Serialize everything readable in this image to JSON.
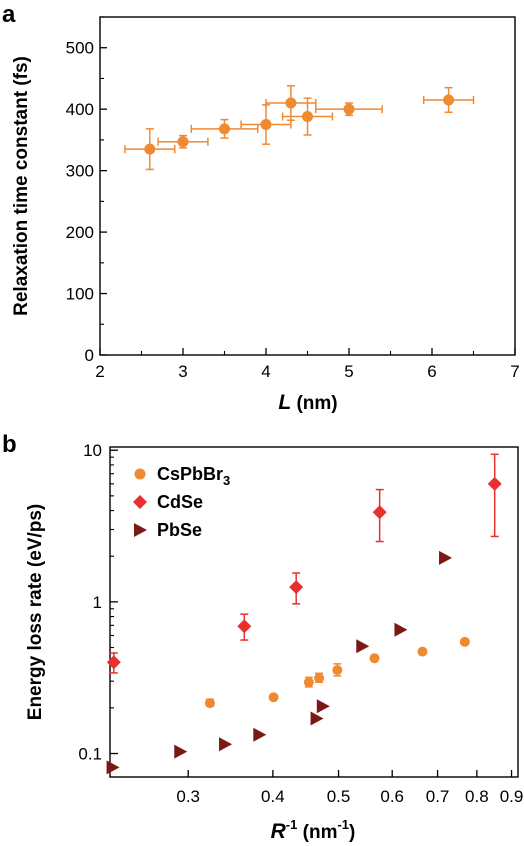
{
  "chart_data": [
    {
      "panel_label": "a",
      "type": "scatter",
      "xlabel_var": "L",
      "xlabel_unit": " (nm)",
      "ylabel": "Relaxation time constant (fs)",
      "xlim": [
        2,
        7
      ],
      "ylim": [
        0,
        550
      ],
      "xticks": [
        2,
        3,
        4,
        5,
        6,
        7
      ],
      "yticks": [
        0,
        100,
        200,
        300,
        400,
        500
      ],
      "color": "#f08a30",
      "series": [
        {
          "points": [
            {
              "x": 2.6,
              "y": 335,
              "xerr": 0.3,
              "yerr": 33
            },
            {
              "x": 3.0,
              "y": 347,
              "xerr": 0.3,
              "yerr": 10
            },
            {
              "x": 3.5,
              "y": 368,
              "xerr": 0.4,
              "yerr": 15
            },
            {
              "x": 4.0,
              "y": 375,
              "xerr": 0.3,
              "yerr": 32
            },
            {
              "x": 4.3,
              "y": 410,
              "xerr": 0.3,
              "yerr": 28
            },
            {
              "x": 4.5,
              "y": 388,
              "xerr": 0.3,
              "yerr": 30
            },
            {
              "x": 5.0,
              "y": 400,
              "xerr": 0.4,
              "yerr": 10
            },
            {
              "x": 6.2,
              "y": 415,
              "xerr": 0.3,
              "yerr": 20
            }
          ]
        }
      ]
    },
    {
      "panel_label": "b",
      "type": "scatter",
      "xscale": "log",
      "yscale": "log",
      "xlabel_var": "R",
      "xlabel_sup": "-1",
      "xlabel_unit_pre": " (nm",
      "xlabel_unit_sup": "-1",
      "xlabel_unit_post": ")",
      "ylabel": "Energy loss rate (eV/ps)",
      "xlim": [
        0.23,
        0.92
      ],
      "ylim": [
        0.07,
        10.5
      ],
      "xticks": [
        0.3,
        0.4,
        0.5,
        0.6,
        0.7,
        0.8,
        0.9
      ],
      "xtick_labels": [
        "0.3",
        "0.4",
        "0.5",
        "0.6",
        "0.7",
        "0.8",
        "0.9"
      ],
      "yticks": [
        0.1,
        1,
        10
      ],
      "ytick_labels": [
        "0.1",
        "1",
        "10"
      ],
      "legend_position": "top-left",
      "series": [
        {
          "name_main": "CsPbBr",
          "name_sub": "3",
          "marker": "circle",
          "color": "#f08a30",
          "points": [
            {
              "x": 0.323,
              "y": 0.215,
              "ylo": 0.205,
              "yhi": 0.228
            },
            {
              "x": 0.401,
              "y": 0.235
            },
            {
              "x": 0.452,
              "y": 0.295,
              "ylo": 0.275,
              "yhi": 0.318
            },
            {
              "x": 0.468,
              "y": 0.315,
              "ylo": 0.295,
              "yhi": 0.338
            },
            {
              "x": 0.498,
              "y": 0.355,
              "ylo": 0.325,
              "yhi": 0.39
            },
            {
              "x": 0.565,
              "y": 0.425
            },
            {
              "x": 0.665,
              "y": 0.47
            },
            {
              "x": 0.768,
              "y": 0.545
            }
          ]
        },
        {
          "name_main": "CdSe",
          "marker": "diamond",
          "color": "#e8312e",
          "points": [
            {
              "x": 0.233,
              "y": 0.4,
              "ylo": 0.34,
              "yhi": 0.46
            },
            {
              "x": 0.363,
              "y": 0.69,
              "ylo": 0.56,
              "yhi": 0.83
            },
            {
              "x": 0.433,
              "y": 1.25,
              "ylo": 0.97,
              "yhi": 1.55
            },
            {
              "x": 0.575,
              "y": 3.9,
              "ylo": 2.5,
              "yhi": 5.5
            },
            {
              "x": 0.85,
              "y": 6.0,
              "ylo": 2.7,
              "yhi": 9.4
            }
          ]
        },
        {
          "name_main": "PbSe",
          "marker": "triangle-right",
          "color": "#7b1a14",
          "points": [
            {
              "x": 0.232,
              "y": 0.081
            },
            {
              "x": 0.292,
              "y": 0.103
            },
            {
              "x": 0.34,
              "y": 0.115
            },
            {
              "x": 0.382,
              "y": 0.133
            },
            {
              "x": 0.464,
              "y": 0.17
            },
            {
              "x": 0.474,
              "y": 0.205
            },
            {
              "x": 0.542,
              "y": 0.51
            },
            {
              "x": 0.617,
              "y": 0.655
            },
            {
              "x": 0.718,
              "y": 1.95
            }
          ]
        }
      ]
    }
  ]
}
